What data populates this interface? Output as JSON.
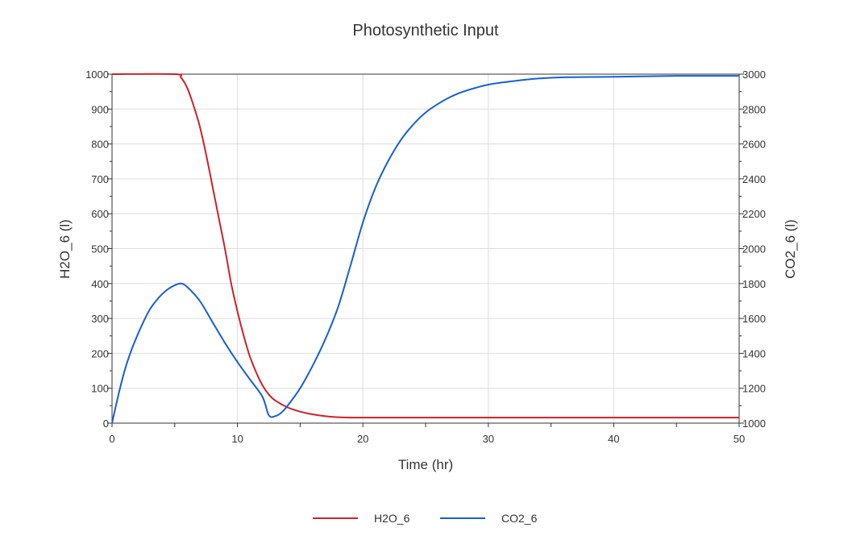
{
  "chart_data": {
    "type": "line",
    "title": "Photosynthetic Input",
    "xlabel": "Time (hr)",
    "ylabel_left": "H2O_6 (l)",
    "ylabel_right": "CO2_6 (l)",
    "xlim": [
      0,
      50
    ],
    "ylim_left": [
      0,
      1000
    ],
    "ylim_right": [
      1000,
      3000
    ],
    "x_ticks": [
      0,
      10,
      20,
      30,
      40,
      50
    ],
    "y_left_ticks": [
      0,
      100,
      200,
      300,
      400,
      500,
      600,
      700,
      800,
      900,
      1000
    ],
    "y_right_ticks": [
      1000,
      1200,
      1400,
      1600,
      1800,
      2000,
      2200,
      2400,
      2600,
      2800,
      3000
    ],
    "grid": true,
    "legend_position": "bottom-center",
    "series": [
      {
        "name": "H2O_6",
        "axis": "left",
        "color": "#d0202a",
        "points": [
          [
            0,
            1000
          ],
          [
            5,
            1000
          ],
          [
            5.5,
            990
          ],
          [
            6,
            960
          ],
          [
            6.5,
            910
          ],
          [
            7,
            850
          ],
          [
            7.5,
            770
          ],
          [
            8,
            680
          ],
          [
            8.5,
            590
          ],
          [
            9,
            500
          ],
          [
            9.5,
            400
          ],
          [
            10,
            320
          ],
          [
            10.5,
            250
          ],
          [
            11,
            190
          ],
          [
            11.5,
            145
          ],
          [
            12,
            108
          ],
          [
            12.5,
            82
          ],
          [
            13,
            65
          ],
          [
            14,
            45
          ],
          [
            15,
            33
          ],
          [
            16,
            25
          ],
          [
            17,
            20
          ],
          [
            18,
            17
          ],
          [
            19,
            16
          ],
          [
            20,
            16
          ],
          [
            25,
            16
          ],
          [
            30,
            16
          ],
          [
            40,
            16
          ],
          [
            50,
            16
          ]
        ]
      },
      {
        "name": "CO2_6",
        "axis": "right",
        "color": "#1560d4",
        "points": [
          [
            0,
            1000
          ],
          [
            0.5,
            1160
          ],
          [
            1,
            1300
          ],
          [
            1.5,
            1410
          ],
          [
            2,
            1500
          ],
          [
            2.5,
            1580
          ],
          [
            3,
            1650
          ],
          [
            3.5,
            1700
          ],
          [
            4,
            1740
          ],
          [
            4.5,
            1770
          ],
          [
            5,
            1790
          ],
          [
            5.5,
            1800
          ],
          [
            6,
            1780
          ],
          [
            7,
            1700
          ],
          [
            8,
            1580
          ],
          [
            9,
            1460
          ],
          [
            10,
            1350
          ],
          [
            11,
            1250
          ],
          [
            12,
            1150
          ],
          [
            12.5,
            1045
          ],
          [
            13,
            1040
          ],
          [
            13.5,
            1060
          ],
          [
            14,
            1100
          ],
          [
            15,
            1200
          ],
          [
            16,
            1330
          ],
          [
            17,
            1480
          ],
          [
            18,
            1660
          ],
          [
            19,
            1900
          ],
          [
            20,
            2150
          ],
          [
            21,
            2350
          ],
          [
            22,
            2500
          ],
          [
            23,
            2620
          ],
          [
            24,
            2710
          ],
          [
            25,
            2780
          ],
          [
            26,
            2830
          ],
          [
            27,
            2870
          ],
          [
            28,
            2900
          ],
          [
            30,
            2940
          ],
          [
            32,
            2960
          ],
          [
            34,
            2975
          ],
          [
            36,
            2982
          ],
          [
            40,
            2985
          ],
          [
            45,
            2990
          ],
          [
            50,
            2990
          ]
        ]
      }
    ]
  }
}
